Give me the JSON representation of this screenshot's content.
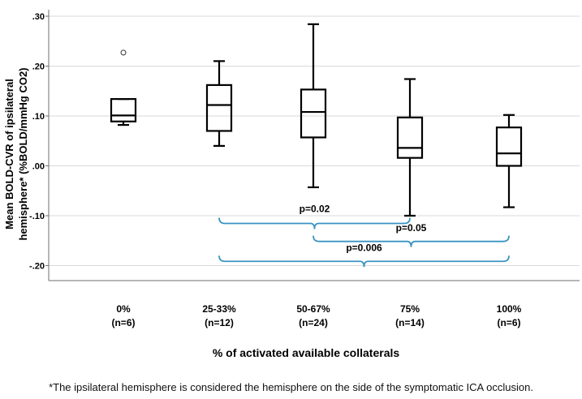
{
  "chart_data": {
    "type": "box",
    "xlabel": "% of activated available collaterals",
    "ylabel_line1": "Mean BOLD-CVR of ipsilateral",
    "ylabel_line2": "hemisphere*  (%BOLD/mmHg CO2)",
    "ylim": [
      -0.23,
      0.31
    ],
    "y_ticks": [
      0.3,
      0.2,
      0.1,
      0.0,
      -0.1,
      -0.2
    ],
    "y_tick_labels": [
      ".30",
      ".20",
      ".10",
      ".00",
      "-.10",
      "-.20"
    ],
    "grid": true,
    "groups": [
      {
        "label": "0%",
        "n_label": "(n=6)",
        "min": 0.082,
        "q1": 0.089,
        "median": 0.101,
        "q3": 0.134,
        "max": 0.134,
        "outliers": [
          0.227
        ]
      },
      {
        "label": "25-33%",
        "n_label": "(n=12)",
        "min": 0.04,
        "q1": 0.07,
        "median": 0.122,
        "q3": 0.162,
        "max": 0.21,
        "outliers": []
      },
      {
        "label": "50-67%",
        "n_label": "(n=24)",
        "min": -0.043,
        "q1": 0.057,
        "median": 0.108,
        "q3": 0.153,
        "max": 0.284,
        "outliers": []
      },
      {
        "label": "75%",
        "n_label": "(n=14)",
        "min": -0.1,
        "q1": 0.016,
        "median": 0.036,
        "q3": 0.097,
        "max": 0.174,
        "outliers": []
      },
      {
        "label": "100%",
        "n_label": "(n=6)",
        "min": -0.083,
        "q1": 0.0,
        "median": 0.025,
        "q3": 0.077,
        "max": 0.102,
        "outliers": []
      }
    ],
    "annotations": [
      {
        "text": "p=0.02",
        "from": 1,
        "to": 3,
        "y": -0.1155,
        "label_y": -0.0925
      },
      {
        "text": "p=0.05",
        "from": 2,
        "to": 4,
        "y": -0.1515,
        "label_y": -0.1305
      },
      {
        "text": "p=0.006",
        "from": 1,
        "to": 4,
        "y": -0.1915,
        "label_y": -0.1705
      }
    ]
  },
  "footnote": "*The ipsilateral hemisphere is considered the hemisphere on the side of the symptomatic ICA occlusion.",
  "colors": {
    "box": "#000000",
    "grid": "#d9d9d9",
    "bracket": "#3a94c2",
    "axis": "#6e6e6e"
  }
}
